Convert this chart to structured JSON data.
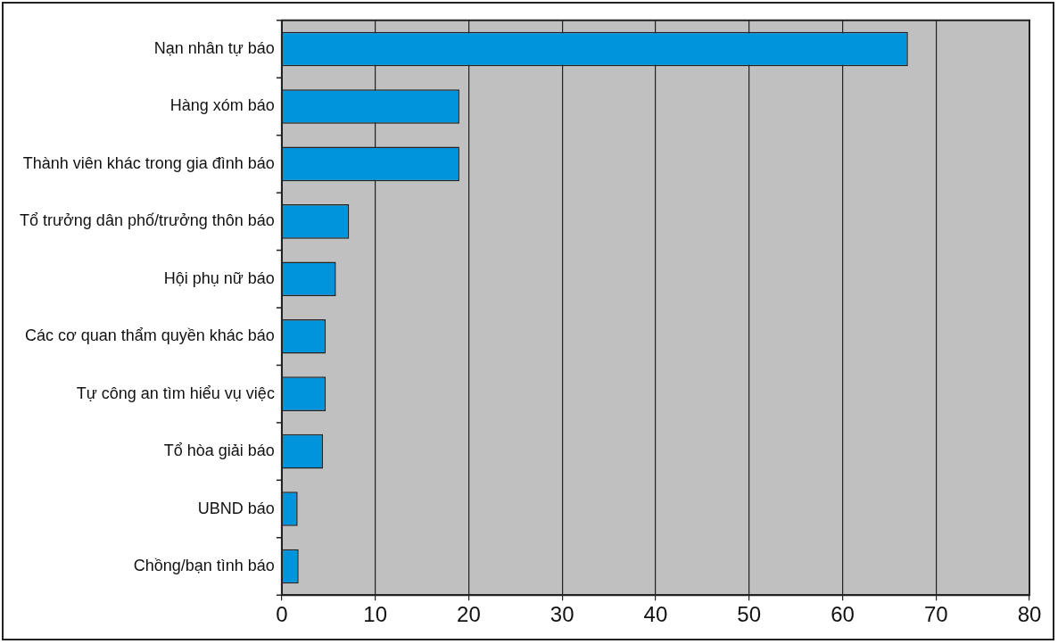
{
  "chart_data": {
    "type": "bar",
    "orientation": "horizontal",
    "categories": [
      "Nạn nhân tự báo",
      "Hàng xóm báo",
      "Thành viên khác trong gia đình báo",
      "Tổ trưởng dân phố/trưởng thôn báo",
      "Hội phụ nữ báo",
      "Các cơ quan thẩm quyền khác báo",
      "Tự công an tìm hiểu vụ việc",
      "Tổ hòa giải báo",
      "UBND báo",
      "Chồng/bạn tình báo"
    ],
    "values": [
      67,
      19,
      19,
      7.2,
      5.8,
      4.7,
      4.7,
      4.4,
      1.7,
      1.8
    ],
    "color": "#0094dc",
    "xlim": [
      0,
      80
    ],
    "xticks": [
      0,
      10,
      20,
      30,
      40,
      50,
      60,
      70,
      80
    ],
    "grid": "x",
    "legend": false
  }
}
